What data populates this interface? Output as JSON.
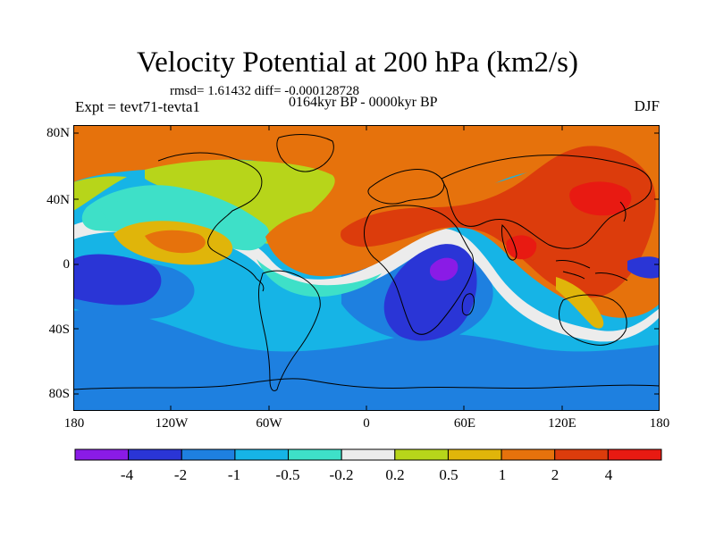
{
  "title": "Velocity Potential at 200 hPa (km2/s)",
  "stats": "rmsd= 1.61432 diff= -0.000128728",
  "experiment": "Expt = tevt71-tevta1",
  "period": "0164kyr BP - 0000kyr BP",
  "season": "DJF",
  "y_axis": {
    "labels": [
      "80N",
      "40N",
      "0",
      "40S",
      "80S"
    ]
  },
  "x_axis": {
    "labels": [
      "180",
      "120W",
      "60W",
      "0",
      "60E",
      "120E",
      "180"
    ]
  },
  "colorbar": {
    "boundary_labels": [
      "-4",
      "-2",
      "-1",
      "-0.5",
      "-0.2",
      "0.2",
      "0.5",
      "1",
      "2",
      "4"
    ],
    "colors": [
      "#8a1be6",
      "#2a35d6",
      "#1e80e0",
      "#16b4e6",
      "#3ee0c8",
      "#ececec",
      "#b7d51a",
      "#e0b50a",
      "#e6720c",
      "#dc3c0c",
      "#e81a12"
    ]
  },
  "field": {
    "background": "#16b4e6",
    "regions": [
      {
        "name": "northern-high-lat",
        "color": "#e6720c",
        "level": "1 to 2"
      },
      {
        "name": "north-pacific-positive",
        "color": "#3ee0c8",
        "level": "-0.5 to -0.2"
      },
      {
        "name": "north-america-yellow",
        "color": "#b7d51a",
        "level": "0.2 to 0.5"
      },
      {
        "name": "tropical-pacific-orange",
        "color": "#e0b50a",
        "level": "0.5 to 1"
      },
      {
        "name": "atlantic-africa-orange",
        "color": "#e6720c",
        "level": "1 to 2"
      },
      {
        "name": "eurasia-red",
        "color": "#dc3c0c",
        "level": "2 to 4"
      },
      {
        "name": "east-asia-max",
        "color": "#e81a12",
        "level": "> 4"
      },
      {
        "name": "southern-africa-low",
        "color": "#2a35d6",
        "level": "-4 to -2"
      },
      {
        "name": "madagascar-min",
        "color": "#8a1be6",
        "level": "< -4"
      },
      {
        "name": "east-pacific-low",
        "color": "#2a35d6",
        "level": "-4 to -2"
      },
      {
        "name": "southern-ocean",
        "color": "#1e80e0",
        "level": "-2 to -1"
      }
    ]
  }
}
